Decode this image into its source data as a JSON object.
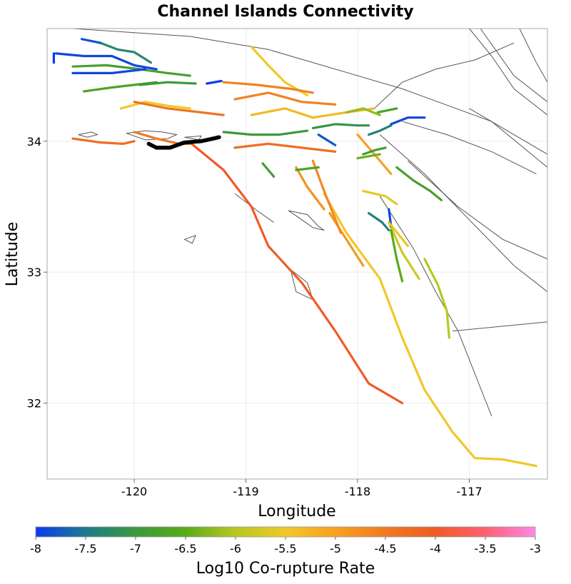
{
  "chart_data": {
    "type": "map",
    "title": "Channel Islands Connectivity",
    "xlabel": "Longitude",
    "ylabel": "Latitude",
    "xlim": [
      -120.78,
      -116.3
    ],
    "ylim": [
      31.42,
      34.86
    ],
    "xticks": [
      -120,
      -119,
      -118,
      -117
    ],
    "yticks": [
      32,
      33,
      34
    ],
    "grid": true,
    "colorbar": {
      "label": "Log10 Co-rupture Rate",
      "range": [
        -8,
        -3
      ],
      "ticks": [
        "-8",
        "-7.5",
        "-7",
        "-6.5",
        "-6",
        "-5.5",
        "-5",
        "-4.5",
        "-4",
        "-3.5",
        "-3"
      ],
      "stops": [
        {
          "value": -8,
          "color": "#0a3cf0"
        },
        {
          "value": -7.5,
          "color": "#1f7a8c"
        },
        {
          "value": -7,
          "color": "#3a9a3a"
        },
        {
          "value": -6.5,
          "color": "#5aaa1a"
        },
        {
          "value": -6,
          "color": "#b8c820"
        },
        {
          "value": -5.5,
          "color": "#f0c828"
        },
        {
          "value": -5,
          "color": "#f8a020"
        },
        {
          "value": -4.5,
          "color": "#f07a20"
        },
        {
          "value": -4,
          "color": "#f05a28"
        },
        {
          "value": -3.5,
          "color": "#ff6070"
        },
        {
          "value": -3,
          "color": "#ff88e8"
        }
      ]
    },
    "source_section": {
      "name": "Channel Islands",
      "color": "#000000",
      "points": [
        [
          -119.87,
          33.98
        ],
        [
          -119.8,
          33.95
        ],
        [
          -119.68,
          33.95
        ],
        [
          -119.55,
          33.99
        ],
        [
          -119.4,
          34.0
        ],
        [
          -119.24,
          34.03
        ]
      ]
    },
    "islands": [
      [
        [
          -120.5,
          34.05
        ],
        [
          -120.38,
          34.07
        ],
        [
          -120.33,
          34.05
        ],
        [
          -120.42,
          34.03
        ],
        [
          -120.5,
          34.05
        ]
      ],
      [
        [
          -120.07,
          34.06
        ],
        [
          -119.9,
          34.08
        ],
        [
          -119.75,
          34.07
        ],
        [
          -119.62,
          34.05
        ],
        [
          -119.7,
          34.02
        ],
        [
          -119.9,
          34.01
        ],
        [
          -120.07,
          34.06
        ]
      ],
      [
        [
          -119.55,
          34.03
        ],
        [
          -119.4,
          34.04
        ],
        [
          -119.42,
          34.01
        ],
        [
          -119.55,
          34.03
        ]
      ],
      [
        [
          -119.55,
          33.25
        ],
        [
          -119.45,
          33.28
        ],
        [
          -119.48,
          33.22
        ],
        [
          -119.55,
          33.25
        ]
      ],
      [
        [
          -118.62,
          33.47
        ],
        [
          -118.45,
          33.44
        ],
        [
          -118.35,
          33.35
        ],
        [
          -118.3,
          33.32
        ],
        [
          -118.4,
          33.34
        ],
        [
          -118.55,
          33.43
        ],
        [
          -118.62,
          33.47
        ]
      ],
      [
        [
          -118.6,
          33.02
        ],
        [
          -118.55,
          32.85
        ],
        [
          -118.4,
          32.79
        ],
        [
          -118.45,
          32.92
        ],
        [
          -118.6,
          33.02
        ]
      ]
    ],
    "ruptures": [
      {
        "rate": -4.0,
        "points": [
          [
            -119.5,
            33.99
          ],
          [
            -119.2,
            33.78
          ],
          [
            -118.95,
            33.5
          ],
          [
            -118.8,
            33.2
          ],
          [
            -118.5,
            32.92
          ],
          [
            -118.2,
            32.55
          ],
          [
            -117.9,
            32.15
          ],
          [
            -117.6,
            32.0
          ]
        ]
      },
      {
        "rate": -5.5,
        "points": [
          [
            -118.3,
            33.6
          ],
          [
            -118.1,
            33.3
          ],
          [
            -117.8,
            32.95
          ],
          [
            -117.6,
            32.5
          ],
          [
            -117.4,
            32.1
          ],
          [
            -117.15,
            31.78
          ],
          [
            -116.95,
            31.58
          ],
          [
            -116.7,
            31.57
          ],
          [
            -116.4,
            31.52
          ]
        ]
      },
      {
        "rate": -4.3,
        "points": [
          [
            -120.55,
            34.02
          ],
          [
            -120.3,
            33.99
          ],
          [
            -120.1,
            33.98
          ],
          [
            -120.0,
            34.0
          ]
        ]
      },
      {
        "rate": -4.3,
        "points": [
          [
            -119.1,
            33.95
          ],
          [
            -118.8,
            33.98
          ],
          [
            -118.5,
            33.95
          ],
          [
            -118.2,
            33.92
          ]
        ]
      },
      {
        "rate": -4.5,
        "points": [
          [
            -120.0,
            34.07
          ],
          [
            -119.8,
            34.02
          ],
          [
            -119.6,
            33.98
          ],
          [
            -119.5,
            33.98
          ]
        ]
      },
      {
        "rate": -4.8,
        "points": [
          [
            -118.55,
            33.8
          ],
          [
            -118.45,
            33.65
          ],
          [
            -118.3,
            33.48
          ]
        ]
      },
      {
        "rate": -4.9,
        "points": [
          [
            -118.25,
            33.45
          ],
          [
            -118.1,
            33.25
          ],
          [
            -117.95,
            33.05
          ]
        ]
      },
      {
        "rate": -4.7,
        "points": [
          [
            -118.4,
            33.85
          ],
          [
            -118.3,
            33.62
          ],
          [
            -118.15,
            33.3
          ]
        ]
      },
      {
        "rate": -5.0,
        "points": [
          [
            -118.0,
            34.05
          ],
          [
            -117.85,
            33.9
          ],
          [
            -117.7,
            33.75
          ]
        ]
      },
      {
        "rate": -5.6,
        "points": [
          [
            -117.95,
            33.62
          ],
          [
            -117.75,
            33.58
          ],
          [
            -117.65,
            33.52
          ]
        ]
      },
      {
        "rate": -5.8,
        "points": [
          [
            -117.72,
            33.38
          ],
          [
            -117.6,
            33.15
          ],
          [
            -117.45,
            32.95
          ]
        ]
      },
      {
        "rate": -6.0,
        "points": [
          [
            -117.4,
            33.1
          ],
          [
            -117.28,
            32.9
          ],
          [
            -117.2,
            32.7
          ],
          [
            -117.18,
            32.5
          ]
        ]
      },
      {
        "rate": -6.5,
        "points": [
          [
            -117.7,
            33.32
          ],
          [
            -117.65,
            33.1
          ],
          [
            -117.6,
            32.93
          ]
        ]
      },
      {
        "rate": -5.5,
        "points": [
          [
            -120.12,
            34.25
          ],
          [
            -119.9,
            34.3
          ],
          [
            -119.7,
            34.27
          ],
          [
            -119.5,
            34.25
          ]
        ]
      },
      {
        "rate": -4.4,
        "points": [
          [
            -120.0,
            34.3
          ],
          [
            -119.7,
            34.25
          ],
          [
            -119.4,
            34.22
          ],
          [
            -119.2,
            34.2
          ]
        ]
      },
      {
        "rate": -4.6,
        "points": [
          [
            -119.1,
            34.32
          ],
          [
            -118.8,
            34.37
          ],
          [
            -118.5,
            34.3
          ],
          [
            -118.2,
            34.28
          ]
        ]
      },
      {
        "rate": -5.3,
        "points": [
          [
            -118.95,
            34.2
          ],
          [
            -118.65,
            34.25
          ],
          [
            -118.4,
            34.18
          ],
          [
            -118.1,
            34.22
          ],
          [
            -117.85,
            34.25
          ]
        ]
      },
      {
        "rate": -5.5,
        "points": [
          [
            -118.95,
            34.72
          ],
          [
            -118.8,
            34.58
          ],
          [
            -118.65,
            34.45
          ],
          [
            -118.45,
            34.35
          ]
        ]
      },
      {
        "rate": -4.6,
        "points": [
          [
            -119.2,
            34.45
          ],
          [
            -118.9,
            34.43
          ],
          [
            -118.6,
            34.4
          ],
          [
            -118.4,
            34.37
          ]
        ]
      },
      {
        "rate": -6.7,
        "points": [
          [
            -120.45,
            34.38
          ],
          [
            -120.2,
            34.41
          ],
          [
            -120.0,
            34.43
          ],
          [
            -119.8,
            34.45
          ]
        ]
      },
      {
        "rate": -6.8,
        "points": [
          [
            -120.55,
            34.57
          ],
          [
            -120.25,
            34.58
          ],
          [
            -119.95,
            34.55
          ],
          [
            -119.7,
            34.52
          ],
          [
            -119.5,
            34.5
          ]
        ]
      },
      {
        "rate": -7.3,
        "points": [
          [
            -120.3,
            34.75
          ],
          [
            -120.15,
            34.7
          ],
          [
            -120.0,
            34.68
          ],
          [
            -119.85,
            34.6
          ]
        ]
      },
      {
        "rate": -7.9,
        "points": [
          [
            -120.7,
            34.67
          ],
          [
            -120.45,
            34.65
          ],
          [
            -120.2,
            34.65
          ],
          [
            -120.0,
            34.58
          ],
          [
            -119.8,
            34.55
          ]
        ]
      },
      {
        "rate": -7.9,
        "points": [
          [
            -120.55,
            34.52
          ],
          [
            -120.2,
            34.52
          ],
          [
            -119.9,
            34.55
          ]
        ]
      },
      {
        "rate": -7.8,
        "points": [
          [
            -120.47,
            34.78
          ],
          [
            -120.3,
            34.75
          ]
        ]
      },
      {
        "rate": -8.0,
        "points": [
          [
            -119.35,
            34.44
          ],
          [
            -119.22,
            34.46
          ]
        ]
      },
      {
        "rate": -8.0,
        "points": [
          [
            -120.72,
            34.67
          ],
          [
            -120.72,
            34.6
          ]
        ]
      },
      {
        "rate": -7.0,
        "points": [
          [
            -119.95,
            34.43
          ],
          [
            -119.7,
            34.45
          ],
          [
            -119.45,
            34.44
          ]
        ]
      },
      {
        "rate": -7.0,
        "points": [
          [
            -119.2,
            34.07
          ],
          [
            -118.95,
            34.05
          ],
          [
            -118.7,
            34.05
          ],
          [
            -118.45,
            34.08
          ]
        ]
      },
      {
        "rate": -6.9,
        "points": [
          [
            -118.85,
            33.83
          ],
          [
            -118.75,
            33.73
          ]
        ]
      },
      {
        "rate": -6.8,
        "points": [
          [
            -117.65,
            33.8
          ],
          [
            -117.5,
            33.7
          ],
          [
            -117.35,
            33.62
          ],
          [
            -117.25,
            33.55
          ]
        ]
      },
      {
        "rate": -7.1,
        "points": [
          [
            -118.4,
            34.1
          ],
          [
            -118.2,
            34.13
          ],
          [
            -118.0,
            34.12
          ],
          [
            -117.9,
            34.12
          ]
        ]
      },
      {
        "rate": -7.4,
        "points": [
          [
            -117.9,
            34.05
          ],
          [
            -117.8,
            34.08
          ],
          [
            -117.7,
            34.12
          ]
        ]
      },
      {
        "rate": -7.9,
        "points": [
          [
            -117.7,
            34.13
          ],
          [
            -117.55,
            34.18
          ],
          [
            -117.4,
            34.18
          ]
        ]
      },
      {
        "rate": -6.8,
        "points": [
          [
            -117.82,
            34.22
          ],
          [
            -117.65,
            34.25
          ]
        ]
      },
      {
        "rate": -7.8,
        "points": [
          [
            -118.35,
            34.05
          ],
          [
            -118.2,
            33.97
          ]
        ]
      },
      {
        "rate": -6.9,
        "points": [
          [
            -117.95,
            33.9
          ],
          [
            -117.85,
            33.93
          ],
          [
            -117.75,
            33.95
          ]
        ]
      },
      {
        "rate": -6.4,
        "points": [
          [
            -118.0,
            33.87
          ],
          [
            -117.8,
            33.9
          ]
        ]
      },
      {
        "rate": -6.7,
        "points": [
          [
            -118.55,
            33.78
          ],
          [
            -118.35,
            33.8
          ]
        ]
      },
      {
        "rate": -6.2,
        "points": [
          [
            -118.1,
            34.22
          ],
          [
            -117.95,
            34.25
          ],
          [
            -117.8,
            34.2
          ]
        ]
      },
      {
        "rate": -7.9,
        "points": [
          [
            -117.72,
            33.48
          ],
          [
            -117.7,
            33.35
          ]
        ]
      },
      {
        "rate": -7.4,
        "points": [
          [
            -117.9,
            33.45
          ],
          [
            -117.78,
            33.38
          ],
          [
            -117.72,
            33.32
          ]
        ]
      },
      {
        "rate": -5.6,
        "points": [
          [
            -117.72,
            33.38
          ],
          [
            -117.55,
            33.2
          ]
        ]
      }
    ],
    "fault_traces": [
      [
        [
          -120.55,
          34.86
        ],
        [
          -119.5,
          34.8
        ],
        [
          -118.8,
          34.7
        ],
        [
          -117.6,
          34.4
        ],
        [
          -116.8,
          34.15
        ],
        [
          -116.3,
          33.8
        ]
      ],
      [
        [
          -117.0,
          34.86
        ],
        [
          -116.8,
          34.65
        ],
        [
          -116.6,
          34.4
        ],
        [
          -116.3,
          34.2
        ]
      ],
      [
        [
          -116.9,
          34.86
        ],
        [
          -116.6,
          34.5
        ],
        [
          -116.3,
          34.3
        ]
      ],
      [
        [
          -116.55,
          34.86
        ],
        [
          -116.4,
          34.6
        ],
        [
          -116.3,
          34.45
        ]
      ],
      [
        [
          -117.8,
          34.05
        ],
        [
          -117.4,
          33.75
        ],
        [
          -117.0,
          33.4
        ],
        [
          -116.6,
          33.05
        ],
        [
          -116.3,
          32.85
        ]
      ],
      [
        [
          -117.55,
          33.85
        ],
        [
          -117.1,
          33.5
        ],
        [
          -116.7,
          33.25
        ],
        [
          -116.3,
          33.1
        ]
      ],
      [
        [
          -117.8,
          33.58
        ],
        [
          -117.5,
          33.18
        ],
        [
          -117.3,
          32.85
        ],
        [
          -117.1,
          32.55
        ],
        [
          -116.8,
          31.9
        ]
      ],
      [
        [
          -117.15,
          32.55
        ],
        [
          -116.3,
          32.62
        ]
      ],
      [
        [
          -117.6,
          34.15
        ],
        [
          -117.2,
          34.05
        ],
        [
          -116.8,
          33.92
        ],
        [
          -116.4,
          33.75
        ]
      ],
      [
        [
          -119.1,
          33.6
        ],
        [
          -118.9,
          33.47
        ],
        [
          -118.75,
          33.38
        ]
      ],
      [
        [
          -117.85,
          34.25
        ],
        [
          -117.6,
          34.45
        ],
        [
          -117.3,
          34.55
        ],
        [
          -116.95,
          34.62
        ],
        [
          -116.6,
          34.75
        ]
      ],
      [
        [
          -117.0,
          34.25
        ],
        [
          -116.7,
          34.1
        ],
        [
          -116.4,
          33.95
        ],
        [
          -116.3,
          33.9
        ]
      ]
    ]
  }
}
